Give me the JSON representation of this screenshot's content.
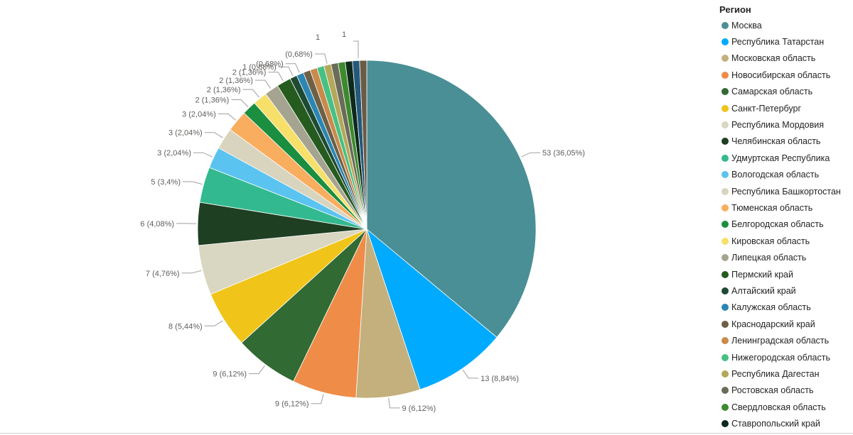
{
  "chart_data": {
    "type": "pie",
    "legend_title": "Регион",
    "legend_position": "right",
    "slices": [
      {
        "name": "Москва",
        "value": 53,
        "label": "53 (36,05%)",
        "color": "#4A8F96"
      },
      {
        "name": "Республика Татарстан",
        "value": 13,
        "label": "13 (8,84%)",
        "color": "#00AAFF"
      },
      {
        "name": "Московская область",
        "value": 9,
        "label": "9 (6,12%)",
        "color": "#C4B07D"
      },
      {
        "name": "Новосибирская область",
        "value": 9,
        "label": "9 (6,12%)",
        "color": "#EF8C48"
      },
      {
        "name": "Самарская область",
        "value": 9,
        "label": "9 (6,12%)",
        "color": "#316A33"
      },
      {
        "name": "Санкт-Петербург",
        "value": 8,
        "label": "8 (5,44%)",
        "color": "#F0C419"
      },
      {
        "name": "Республика Мордовия",
        "value": 7,
        "label": "7 (4,76%)",
        "color": "#D9D6C1"
      },
      {
        "name": "Челябинская область",
        "value": 6,
        "label": "6 (4,08%)",
        "color": "#1F3F23"
      },
      {
        "name": "Удмуртская Республика",
        "value": 5,
        "label": "5 (3,4%)",
        "color": "#33B98F"
      },
      {
        "name": "Вологодская область",
        "value": 3,
        "label": "3 (2,04%)",
        "color": "#5BC3F0"
      },
      {
        "name": "Республика Башкортостан",
        "value": 3,
        "label": "3 (2,04%)",
        "color": "#D8D4BE"
      },
      {
        "name": "Тюменская область",
        "value": 3,
        "label": "3 (2,04%)",
        "color": "#F9AD5E"
      },
      {
        "name": "Белгородская область",
        "value": 2,
        "label": "2 (1,36%)",
        "color": "#1B8E3F"
      },
      {
        "name": "Кировская область",
        "value": 2,
        "label": "2 (1,36%)",
        "color": "#F7E06A"
      },
      {
        "name": "Липецкая область",
        "value": 2,
        "label": "2 (1,36%)",
        "color": "#A5A491"
      },
      {
        "name": "Пермский край",
        "value": 2,
        "label": "2 (1,36%)",
        "color": "#265B1F"
      },
      {
        "name": "Алтайский край",
        "value": 1,
        "label": "1 (0,68%)",
        "color": "#1D4A33"
      },
      {
        "name": "Калужская область",
        "value": 1,
        "label": "(0,68%)",
        "color": "#2B86B5"
      },
      {
        "name": "Краснодарский край",
        "value": 1,
        "label": "",
        "color": "#6E6045"
      },
      {
        "name": "Ленинградская область",
        "value": 1,
        "label": "",
        "color": "#C98A4B"
      },
      {
        "name": "Нижегородская область",
        "value": 1,
        "label": "",
        "color": "#47C083"
      },
      {
        "name": "Республика Дагестан",
        "value": 1,
        "label": "(0,68%)",
        "color": "#B4A85A"
      },
      {
        "name": "Ростовская область",
        "value": 1,
        "label": "",
        "color": "#6B6B5A"
      },
      {
        "name": "Свердловская область",
        "value": 1,
        "label": "",
        "color": "#3D8A2E"
      },
      {
        "name": "Ставропольский край",
        "value": 1,
        "label": "",
        "color": "#0E2A1C"
      },
      {
        "name": "",
        "value": 1,
        "label": "",
        "color": "#24597A"
      },
      {
        "name": "",
        "value": 1,
        "label": "",
        "color": "#6B5A45"
      }
    ],
    "extra_labels": [
      "1",
      "1"
    ]
  }
}
